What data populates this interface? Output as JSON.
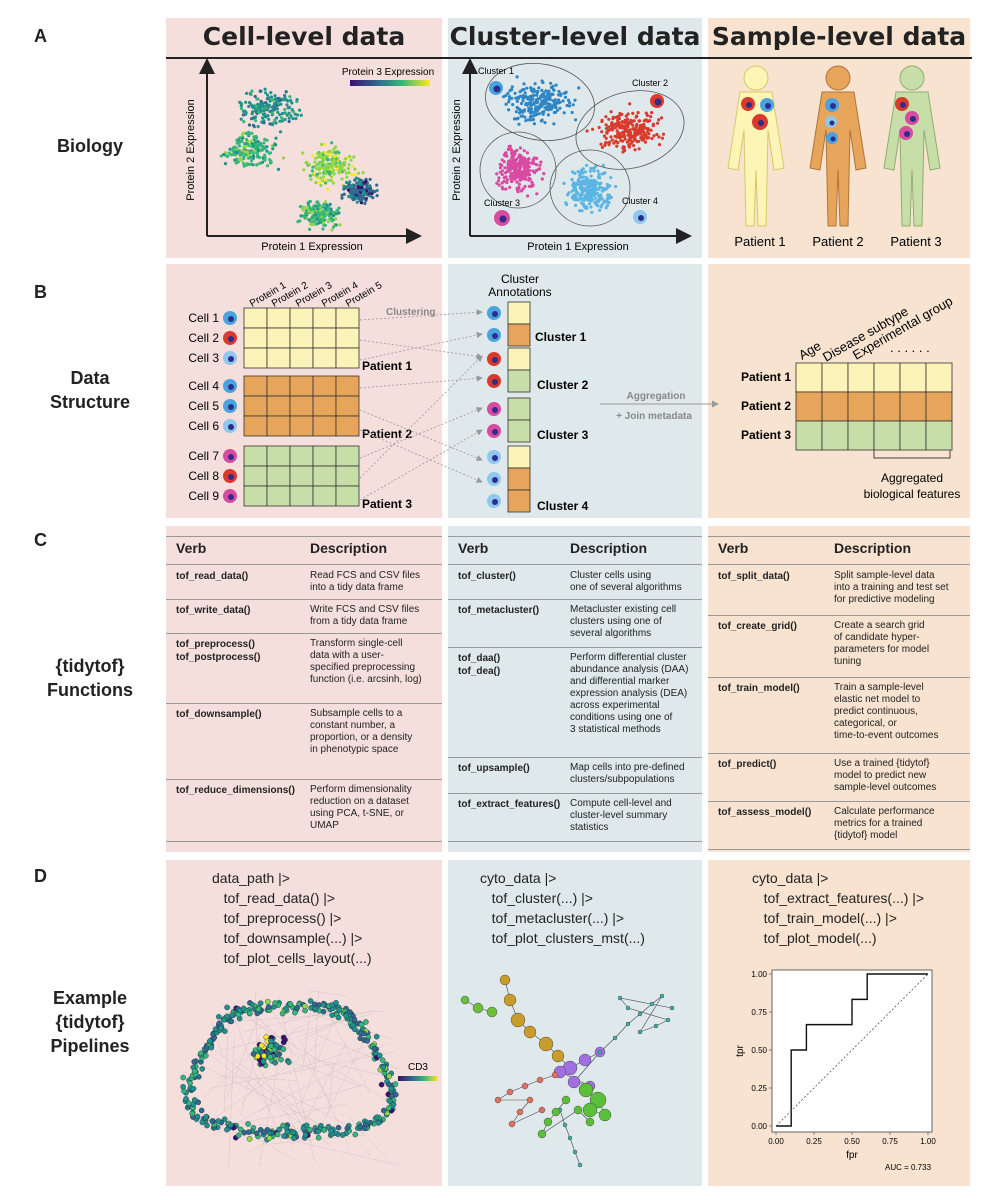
{
  "colors": {
    "pink": "#f5dfdd",
    "blue": "#dfe9ec",
    "peach": "#f7e3d0",
    "yellow": "#fbf3b8",
    "orange": "#e7a55c",
    "green": "#c8dea8"
  },
  "columns": [
    "Cell-level data",
    "Cluster-level data",
    "Sample-level data"
  ],
  "letters": [
    "A",
    "B",
    "C",
    "D"
  ],
  "rows": {
    "biology": "Biology",
    "data_structure": [
      "Data",
      "Structure"
    ],
    "functions": [
      "{tidytof}",
      "Functions"
    ],
    "pipelines": [
      "Example",
      "{tidytof}",
      "Pipelines"
    ]
  },
  "panelA": {
    "cell_xlabel": "Protein 1 Expression",
    "cell_ylabel": "Protein 2 Expression",
    "colorbar": "Protein 3 Expression",
    "cluster_xlabel": "Protein 1 Expression",
    "cluster_ylabel": "Protein 2 Expression",
    "clusters": [
      "Cluster 1",
      "Cluster 2",
      "Cluster 3",
      "Cluster 4"
    ],
    "patients": [
      "Patient 1",
      "Patient 2",
      "Patient 3"
    ]
  },
  "panelB": {
    "proteins": [
      "Protein 1",
      "Protein 2",
      "Protein 3",
      "Protein 4",
      "Protein 5"
    ],
    "cells": [
      "Cell 1",
      "Cell 2",
      "Cell 3",
      "Cell 4",
      "Cell 5",
      "Cell 6",
      "Cell 7",
      "Cell 8",
      "Cell 9"
    ],
    "patients": [
      "Patient 1",
      "Patient 2",
      "Patient 3"
    ],
    "clustering": "Clustering",
    "annotations": [
      "Cluster",
      "Annotations"
    ],
    "clusters": [
      "Cluster 1",
      "Cluster 2",
      "Cluster 3",
      "Cluster 4"
    ],
    "aggregation": "Aggregation",
    "join": "+ Join metadata",
    "sample_cols": [
      "Age",
      "Disease subtype",
      "Experimental group"
    ],
    "dots": ". . . . . .",
    "sample_rows": [
      "Patient 1",
      "Patient 2",
      "Patient 3"
    ],
    "aggregated": [
      "Aggregated",
      "biological features"
    ]
  },
  "panelC": {
    "verb_header": "Verb",
    "desc_header": "Description",
    "cell": [
      {
        "verb": "tof_read_data()",
        "desc": "Read FCS and CSV files\ninto a tidy data frame"
      },
      {
        "verb": "tof_write_data()",
        "desc": "Write FCS and CSV files\nfrom a tidy data frame"
      },
      {
        "verb": "tof_preprocess()\ntof_postprocess()",
        "desc": "Transform single-cell\ndata with a user-\nspecified preprocessing\nfunction (i.e. arcsinh, log)"
      },
      {
        "verb": "tof_downsample()",
        "desc": "Subsample cells to a\nconstant number, a\nproportion, or a density\nin phenotypic space"
      },
      {
        "verb": "tof_reduce_dimensions()",
        "desc": "Perform dimensionality\nreduction on a dataset\nusing PCA, t-SNE, or\nUMAP"
      }
    ],
    "cluster": [
      {
        "verb": "tof_cluster()",
        "desc": "Cluster cells using\none of several algorithms"
      },
      {
        "verb": "tof_metacluster()",
        "desc": "Metacluster existing cell\nclusters using one of\nseveral algorithms"
      },
      {
        "verb": "tof_daa()\ntof_dea()",
        "desc": "Perform differential cluster\nabundance analysis (DAA)\nand differential marker\nexpression analysis (DEA)\nacross experimental\nconditions using one of\n3 statistical methods"
      },
      {
        "verb": "tof_upsample()",
        "desc": "Map cells into pre-defined\nclusters/subpopulations"
      },
      {
        "verb": "tof_extract_features()",
        "desc": "Compute cell-level and\ncluster-level summary\nstatistics"
      }
    ],
    "sample": [
      {
        "verb": "tof_split_data()",
        "desc": "Split sample-level data\ninto a training and test set\nfor predictive modeling"
      },
      {
        "verb": "tof_create_grid()",
        "desc": "Create a search grid\nof candidate hyper-\nparameters for model\ntuning"
      },
      {
        "verb": "tof_train_model()",
        "desc": "Train a sample-level\nelastic net model to\npredict continuous,\ncategorical, or\ntime-to-event outcomes"
      },
      {
        "verb": "tof_predict()",
        "desc": "Use a trained {tidytof}\nmodel to predict new\nsample-level outcomes"
      },
      {
        "verb": "tof_assess_model()",
        "desc": "Calculate performance\nmetrics for a trained\n{tidytof} model"
      }
    ]
  },
  "panelD": {
    "cell_code": "data_path |>\n   tof_read_data() |>\n   tof_preprocess() |>\n   tof_downsample(...) |>\n   tof_plot_cells_layout(...)",
    "cluster_code": "cyto_data |>\n   tof_cluster(...) |>\n   tof_metacluster(...) |>\n   tof_plot_clusters_mst(...)",
    "sample_code": "cyto_data |>\n   tof_extract_features(...) |>\n   tof_train_model(...) |>\n   tof_plot_model(...)",
    "cd3": "CD3",
    "roc": {
      "xlabel": "fpr",
      "ylabel": "tpr",
      "xticks": [
        "0.00",
        "0.25",
        "0.50",
        "0.75",
        "1.00"
      ],
      "yticks": [
        "0.00",
        "0.25",
        "0.50",
        "0.75",
        "1.00"
      ],
      "auc": "AUC = 0.733"
    }
  },
  "chart_data": {
    "type": "line",
    "xlabel": "fpr",
    "ylabel": "tpr",
    "xlim": [
      0,
      1
    ],
    "ylim": [
      0,
      1
    ],
    "series": [
      {
        "x": [
          0,
          0.1,
          0.1,
          0.2,
          0.2,
          0.5,
          0.5,
          0.6,
          0.6,
          1.0
        ],
        "y": [
          0,
          0,
          0.5,
          0.5,
          0.667,
          0.667,
          0.833,
          0.833,
          1.0,
          1.0
        ]
      },
      {
        "x": [
          0,
          1
        ],
        "y": [
          0,
          1
        ]
      }
    ],
    "annotation": "AUC = 0.733"
  }
}
